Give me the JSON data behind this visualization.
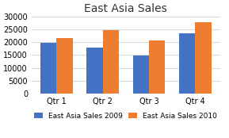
{
  "title": "East Asia Sales",
  "categories": [
    "Qtr 1",
    "Qtr 2",
    "Qtr 3",
    "Qtr 4"
  ],
  "series": [
    {
      "label": "East Asia Sales 2009",
      "values": [
        19800,
        17800,
        14800,
        23500
      ],
      "color": "#4472C4"
    },
    {
      "label": "East Asia Sales 2010",
      "values": [
        21500,
        24800,
        20700,
        27800
      ],
      "color": "#ED7D31"
    }
  ],
  "ylim": [
    0,
    30000
  ],
  "yticks": [
    0,
    5000,
    10000,
    15000,
    20000,
    25000,
    30000
  ],
  "background_color": "#ffffff",
  "plot_bg_color": "#ffffff",
  "grid_color": "#d9d9d9",
  "title_fontsize": 10,
  "tick_fontsize": 7,
  "legend_fontsize": 6.5,
  "bar_width": 0.35,
  "highlight_box_color": "#FF00FF"
}
